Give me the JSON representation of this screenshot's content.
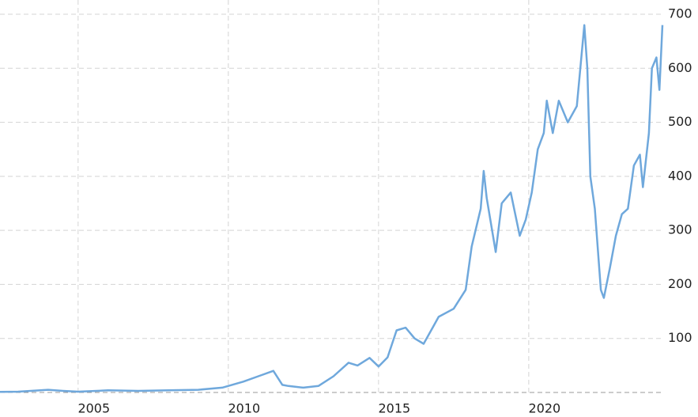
{
  "chart_data": {
    "type": "line",
    "x": [
      2002.4,
      2003.0,
      2004.0,
      2004.5,
      2005.0,
      2006.0,
      2007.0,
      2008.0,
      2009.0,
      2009.8,
      2010.5,
      2011.0,
      2011.5,
      2011.8,
      2012.0,
      2012.5,
      2013.0,
      2013.5,
      2014.0,
      2014.3,
      2014.7,
      2015.0,
      2015.3,
      2015.6,
      2015.9,
      2016.2,
      2016.5,
      2016.8,
      2017.0,
      2017.5,
      2017.9,
      2018.1,
      2018.4,
      2018.5,
      2018.6,
      2018.9,
      2019.1,
      2019.4,
      2019.7,
      2019.9,
      2020.1,
      2020.3,
      2020.5,
      2020.6,
      2020.8,
      2021.0,
      2021.3,
      2021.6,
      2021.85,
      2021.95,
      2022.05,
      2022.2,
      2022.4,
      2022.5,
      2022.7,
      2022.9,
      2023.1,
      2023.3,
      2023.5,
      2023.7,
      2023.8,
      2024.0,
      2024.1,
      2024.25,
      2024.35,
      2024.45
    ],
    "series": [
      {
        "color": "#6fa8dc",
        "values": [
          1.2,
          1.5,
          5,
          3,
          1.5,
          4,
          3,
          4,
          5,
          9,
          20,
          30,
          40,
          14,
          12,
          9,
          12,
          30,
          55,
          50,
          64,
          48,
          65,
          115,
          120,
          100,
          90,
          120,
          140,
          155,
          190,
          270,
          340,
          410,
          360,
          260,
          350,
          370,
          290,
          320,
          370,
          450,
          480,
          540,
          480,
          540,
          500,
          530,
          680,
          600,
          400,
          340,
          190,
          175,
          230,
          290,
          330,
          340,
          420,
          440,
          380,
          480,
          600,
          620,
          560,
          680
        ]
      }
    ],
    "xlim": [
      2002.4,
      2024.45
    ],
    "xticks": [
      2005,
      2010,
      2015,
      2020
    ],
    "ylim": [
      0,
      700
    ],
    "yticks": [
      100,
      200,
      300,
      400,
      500,
      600,
      700
    ],
    "grid": true
  }
}
